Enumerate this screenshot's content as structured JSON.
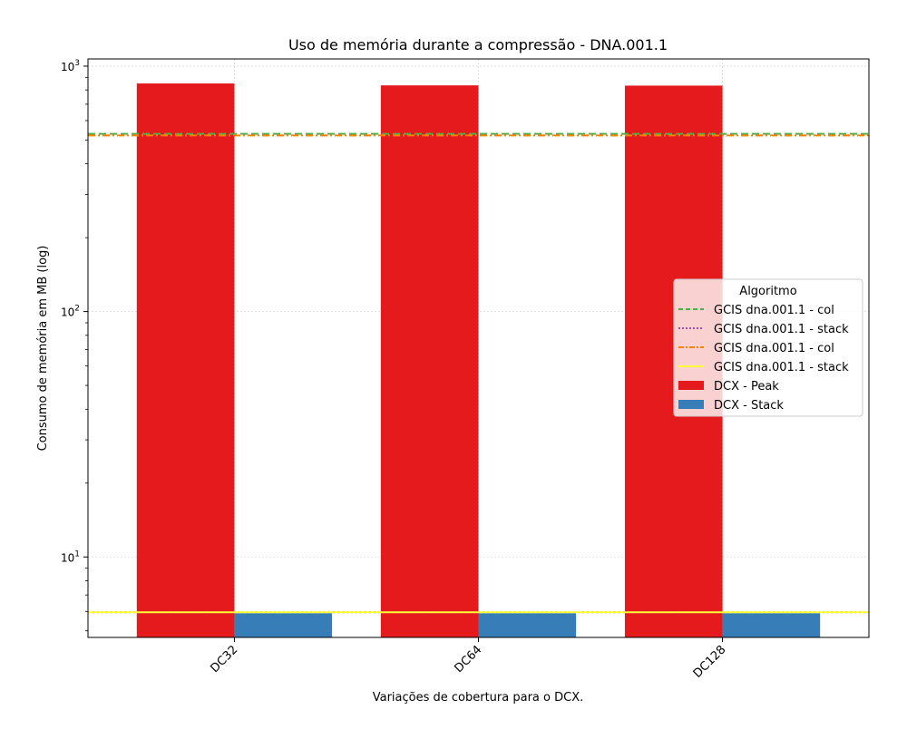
{
  "chart_data": {
    "type": "bar",
    "title": "Uso de memória durante a compressão -  DNA.001.1",
    "xlabel": "Variações de cobertura para o DCX.",
    "ylabel": "Consumo de memória em MB (log)",
    "yscale": "log",
    "ylim": [
      4.7,
      1070
    ],
    "ytick_labels": [
      {
        "value": 10,
        "base": "10",
        "exp": "1"
      },
      {
        "value": 100,
        "base": "10",
        "exp": "2"
      },
      {
        "value": 1000,
        "base": "10",
        "exp": "3"
      }
    ],
    "categories": [
      "DC32",
      "DC64",
      "DC128"
    ],
    "series": [
      {
        "name": "DCX - Peak",
        "values": [
          850,
          835,
          833
        ],
        "color": "#e41a1c"
      },
      {
        "name": "DCX - Stack",
        "values": [
          5.9,
          5.9,
          5.9
        ],
        "color": "#377eb8"
      }
    ],
    "reference_lines": [
      {
        "name": "GCIS dna.001.1 - col",
        "value": 530,
        "color": "#4daf4a",
        "style": "dashed"
      },
      {
        "name": "GCIS dna.001.1 - stack",
        "value": 5.95,
        "color": "#984ea3",
        "style": "dotted"
      },
      {
        "name": "GCIS dna.001.1 - col",
        "value": 522,
        "color": "#ff7f00",
        "style": "dashdot"
      },
      {
        "name": "GCIS dna.001.1 - stack",
        "value": 5.95,
        "color": "#ffff33",
        "style": "solid"
      }
    ],
    "legend": {
      "title": "Algoritmo",
      "placement": "center-right"
    },
    "grid": true,
    "xtick_rotation": 45
  }
}
